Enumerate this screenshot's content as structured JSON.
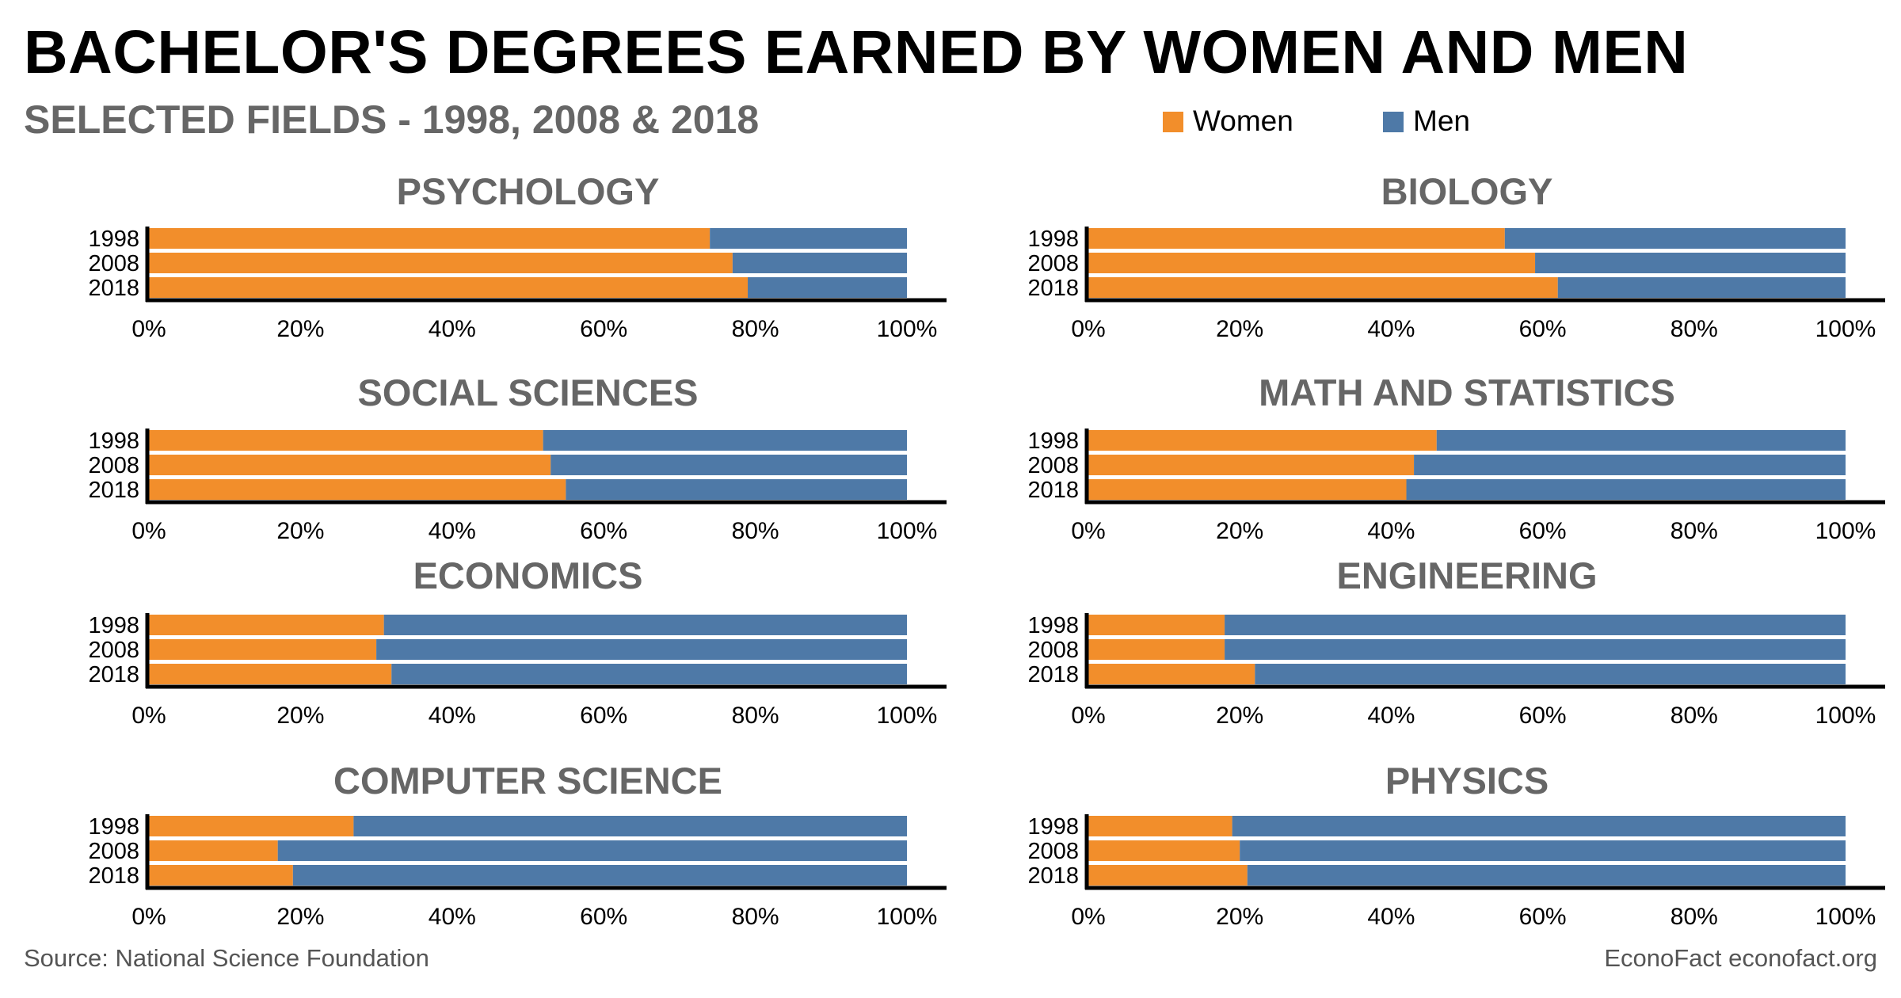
{
  "header": {
    "title": "BACHELOR'S DEGREES EARNED BY WOMEN AND MEN",
    "subtitle": "SELECTED FIELDS - 1998, 2008 & 2018"
  },
  "colors": {
    "women": "#F28E2B",
    "men": "#4E79A7",
    "panel_title": "#666666"
  },
  "legend": {
    "women": "Women",
    "men": "Men"
  },
  "chart_data": [
    {
      "type": "bar",
      "stacked": true,
      "orientation": "horizontal",
      "title": "PSYCHOLOGY",
      "categories": [
        "1998",
        "2008",
        "2018"
      ],
      "series": [
        {
          "name": "Women",
          "values": [
            74,
            77,
            79
          ]
        },
        {
          "name": "Men",
          "values": [
            26,
            23,
            21
          ]
        }
      ],
      "xlim": [
        0,
        100
      ],
      "xticks": [
        "0%",
        "20%",
        "40%",
        "60%",
        "80%",
        "100%"
      ]
    },
    {
      "type": "bar",
      "stacked": true,
      "orientation": "horizontal",
      "title": "BIOLOGY",
      "categories": [
        "1998",
        "2008",
        "2018"
      ],
      "series": [
        {
          "name": "Women",
          "values": [
            55,
            59,
            62
          ]
        },
        {
          "name": "Men",
          "values": [
            45,
            41,
            38
          ]
        }
      ],
      "xlim": [
        0,
        100
      ],
      "xticks": [
        "0%",
        "20%",
        "40%",
        "60%",
        "80%",
        "100%"
      ]
    },
    {
      "type": "bar",
      "stacked": true,
      "orientation": "horizontal",
      "title": "SOCIAL SCIENCES",
      "categories": [
        "1998",
        "2008",
        "2018"
      ],
      "series": [
        {
          "name": "Women",
          "values": [
            52,
            53,
            55
          ]
        },
        {
          "name": "Men",
          "values": [
            48,
            47,
            45
          ]
        }
      ],
      "xlim": [
        0,
        100
      ],
      "xticks": [
        "0%",
        "20%",
        "40%",
        "60%",
        "80%",
        "100%"
      ]
    },
    {
      "type": "bar",
      "stacked": true,
      "orientation": "horizontal",
      "title": "MATH AND STATISTICS",
      "categories": [
        "1998",
        "2008",
        "2018"
      ],
      "series": [
        {
          "name": "Women",
          "values": [
            46,
            43,
            42
          ]
        },
        {
          "name": "Men",
          "values": [
            54,
            57,
            58
          ]
        }
      ],
      "xlim": [
        0,
        100
      ],
      "xticks": [
        "0%",
        "20%",
        "40%",
        "60%",
        "80%",
        "100%"
      ]
    },
    {
      "type": "bar",
      "stacked": true,
      "orientation": "horizontal",
      "title": "ECONOMICS",
      "categories": [
        "1998",
        "2008",
        "2018"
      ],
      "series": [
        {
          "name": "Women",
          "values": [
            31,
            30,
            32
          ]
        },
        {
          "name": "Men",
          "values": [
            69,
            70,
            68
          ]
        }
      ],
      "xlim": [
        0,
        100
      ],
      "xticks": [
        "0%",
        "20%",
        "40%",
        "60%",
        "80%",
        "100%"
      ]
    },
    {
      "type": "bar",
      "stacked": true,
      "orientation": "horizontal",
      "title": "ENGINEERING",
      "categories": [
        "1998",
        "2008",
        "2018"
      ],
      "series": [
        {
          "name": "Women",
          "values": [
            18,
            18,
            22
          ]
        },
        {
          "name": "Men",
          "values": [
            82,
            82,
            78
          ]
        }
      ],
      "xlim": [
        0,
        100
      ],
      "xticks": [
        "0%",
        "20%",
        "40%",
        "60%",
        "80%",
        "100%"
      ]
    },
    {
      "type": "bar",
      "stacked": true,
      "orientation": "horizontal",
      "title": "COMPUTER SCIENCE",
      "categories": [
        "1998",
        "2008",
        "2018"
      ],
      "series": [
        {
          "name": "Women",
          "values": [
            27,
            17,
            19
          ]
        },
        {
          "name": "Men",
          "values": [
            73,
            83,
            81
          ]
        }
      ],
      "xlim": [
        0,
        100
      ],
      "xticks": [
        "0%",
        "20%",
        "40%",
        "60%",
        "80%",
        "100%"
      ]
    },
    {
      "type": "bar",
      "stacked": true,
      "orientation": "horizontal",
      "title": "PHYSICS",
      "categories": [
        "1998",
        "2008",
        "2018"
      ],
      "series": [
        {
          "name": "Women",
          "values": [
            19,
            20,
            21
          ]
        },
        {
          "name": "Men",
          "values": [
            81,
            80,
            79
          ]
        }
      ],
      "xlim": [
        0,
        100
      ],
      "xticks": [
        "0%",
        "20%",
        "40%",
        "60%",
        "80%",
        "100%"
      ]
    }
  ],
  "footer": {
    "source": "Source: National Science Foundation",
    "credit": "EconoFact econofact.org"
  }
}
